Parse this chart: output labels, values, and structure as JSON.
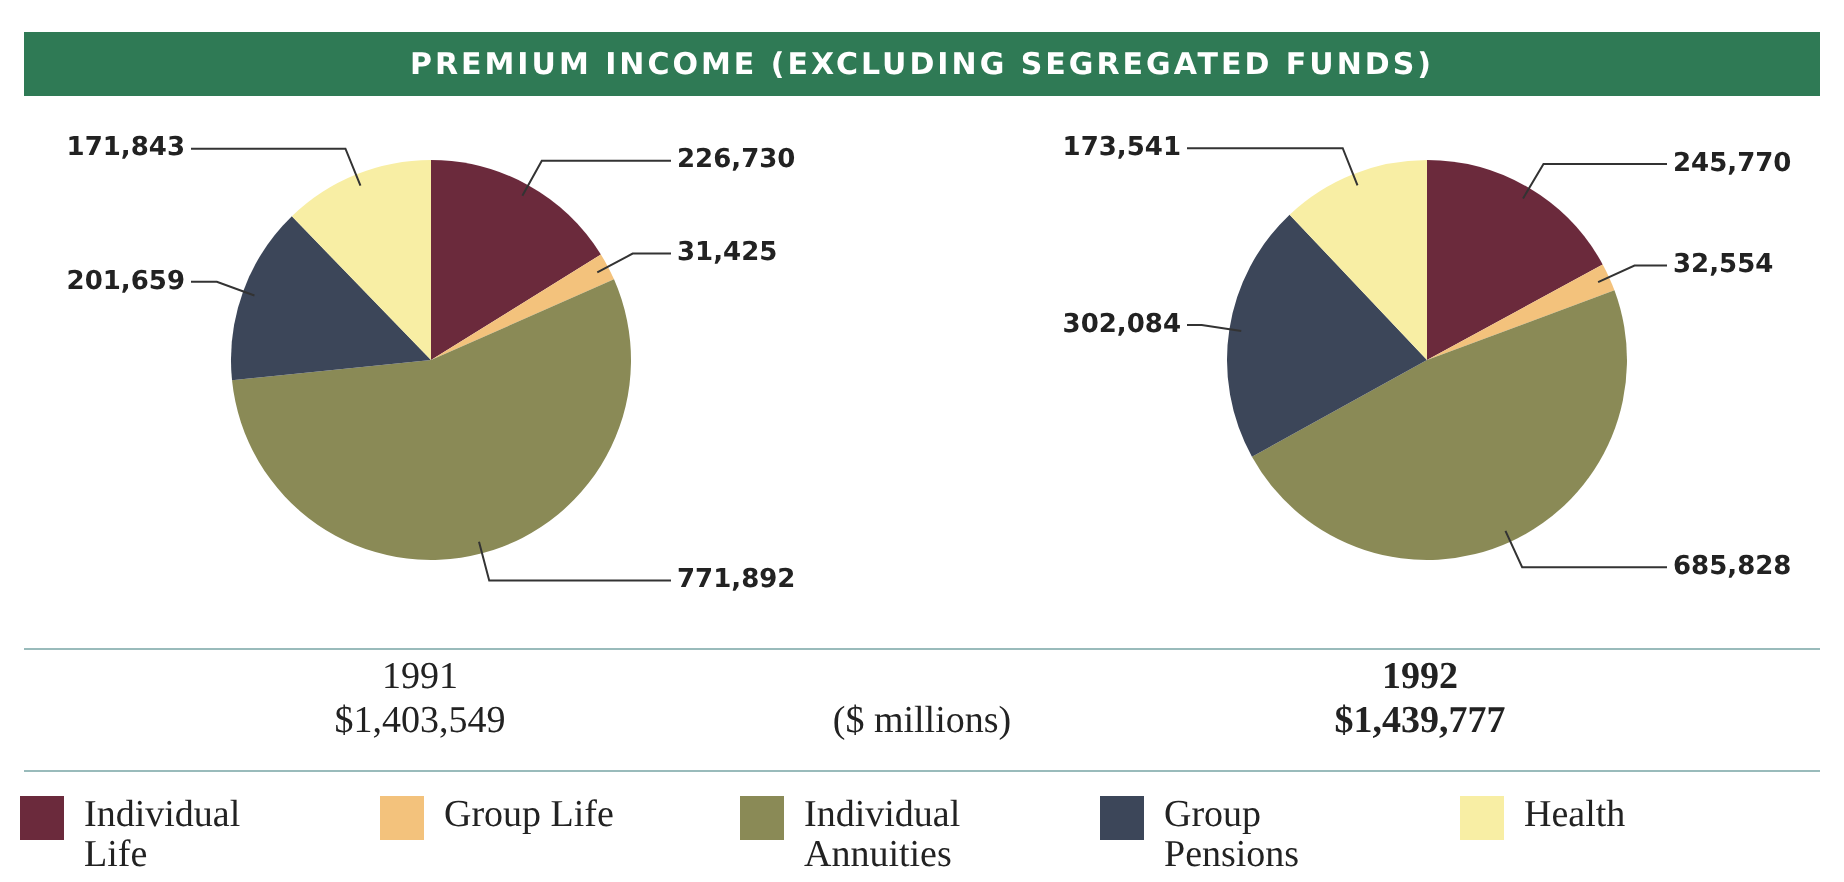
{
  "chart_data": [
    {
      "type": "pie",
      "title": "PREMIUM INCOME (EXCLUDING SEGREGATED FUNDS)",
      "subtitle": "1991",
      "annotations": [
        "$1,403,549",
        "($ millions)"
      ],
      "legend": "bottom",
      "categories": [
        "Individual Life",
        "Group Life",
        "Individual Annuities",
        "Group Pensions",
        "Health"
      ],
      "values": [
        226730,
        31425,
        771892,
        201659,
        171843
      ],
      "value_labels": [
        "226,730",
        "31,425",
        "771,892",
        "201,659",
        "171,843"
      ],
      "colors": [
        "#6b2a3c",
        "#f3c27c",
        "#8a8a56",
        "#3c4659",
        "#f8eea4"
      ]
    },
    {
      "type": "pie",
      "subtitle": "1992",
      "annotations": [
        "$1,439,777"
      ],
      "categories": [
        null,
        null,
        null,
        null,
        null
      ],
      "values": [
        245770,
        32554,
        685828,
        302084,
        173541
      ],
      "value_labels": [
        "245,770",
        "32,554",
        "685,828",
        "302,084",
        "173,541"
      ],
      "colors": [
        "#6b2a3c",
        "#f3c27c",
        "#8a8a56",
        "#3c4659",
        "#f8eea4"
      ]
    }
  ]
}
